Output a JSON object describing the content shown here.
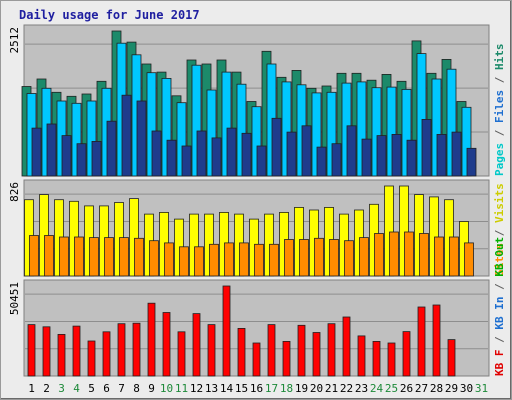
{
  "chart_data": {
    "type": "bar",
    "title": "Daily usage for June 2017",
    "categories": [
      "1",
      "2",
      "3",
      "4",
      "5",
      "6",
      "7",
      "8",
      "9",
      "10",
      "11",
      "12",
      "13",
      "14",
      "15",
      "16",
      "17",
      "18",
      "19",
      "20",
      "21",
      "22",
      "23",
      "24",
      "25",
      "26",
      "27",
      "28",
      "29",
      "30",
      "31"
    ],
    "weekend_days": [
      "3",
      "4",
      "10",
      "11",
      "17",
      "18",
      "24",
      "25",
      "31"
    ],
    "panels": [
      {
        "ymax_label": "2512",
        "ymax": 2512,
        "legend": [
          {
            "text": "Pages",
            "color": "#00c8c8"
          },
          {
            "text": "/",
            "color": "#606060"
          },
          {
            "text": "Files",
            "color": "#1e6fd0"
          },
          {
            "text": "/",
            "color": "#606060"
          },
          {
            "text": "Hits",
            "color": "#1c8a6a"
          }
        ],
        "series": [
          {
            "name": "Hits",
            "color": "#1c8a6a",
            "values": [
              1550,
              1680,
              1450,
              1380,
              1420,
              1640,
              2512,
              2320,
              1940,
              1800,
              1390,
              2010,
              1940,
              2010,
              1800,
              1290,
              2160,
              1710,
              1830,
              1520,
              1560,
              1780,
              1780,
              1660,
              1760,
              1640,
              2340,
              1780,
              2020,
              1290,
              0
            ]
          },
          {
            "name": "Files",
            "color": "#00c8ff",
            "values": [
              1430,
              1520,
              1300,
              1260,
              1300,
              1520,
              2300,
              2100,
              1790,
              1690,
              1270,
              1920,
              1490,
              1800,
              1590,
              1200,
              1940,
              1630,
              1580,
              1440,
              1450,
              1610,
              1630,
              1530,
              1540,
              1500,
              2120,
              1680,
              1850,
              1190,
              0
            ]
          },
          {
            "name": "Pages",
            "color": "#1f3c8c",
            "values": [
              830,
              900,
              700,
              560,
              600,
              950,
              1400,
              1300,
              780,
              620,
              520,
              780,
              660,
              830,
              740,
              520,
              1000,
              760,
              870,
              500,
              560,
              870,
              640,
              700,
              720,
              620,
              980,
              720,
              760,
              480,
              0
            ]
          }
        ]
      },
      {
        "ymax_label": "826",
        "ymax": 826,
        "legend": [
          {
            "text": "Sites",
            "color": "#ff8c00"
          },
          {
            "text": "/",
            "color": "#606060"
          },
          {
            "text": "Visits",
            "color": "#cccc00"
          }
        ],
        "series": [
          {
            "name": "Visits",
            "color": "#ffff00",
            "values": [
              700,
              747,
              700,
              686,
              643,
              643,
              675,
              710,
              568,
              584,
              522,
              568,
              568,
              584,
              568,
              522,
              568,
              584,
              630,
              606,
              630,
              568,
              606,
              658,
              826,
              826,
              747,
              726,
              700,
              500,
              0
            ]
          },
          {
            "name": "Sites",
            "color": "#ff8c00",
            "values": [
              372,
              372,
              358,
              358,
              352,
              352,
              352,
              346,
              324,
              304,
              268,
              268,
              291,
              304,
              304,
              291,
              291,
              335,
              335,
              346,
              335,
              324,
              352,
              390,
              404,
              404,
              390,
              358,
              358,
              304,
              0
            ]
          }
        ]
      },
      {
        "ymax_label": "50451",
        "ymax": 50451,
        "legend": [
          {
            "text": "KB F",
            "color": "#e00000"
          },
          {
            "text": "/",
            "color": "#606060"
          },
          {
            "text": "KB In",
            "color": "#1e6fd0"
          },
          {
            "text": "/",
            "color": "#606060"
          },
          {
            "text": "KB Out",
            "color": "#00b000"
          }
        ],
        "series": [
          {
            "name": "KB F",
            "color": "#ff0000",
            "values": [
              28800,
              27600,
              23300,
              28000,
              19600,
              24800,
              29300,
              29600,
              40800,
              35600,
              24800,
              35000,
              28800,
              50451,
              26700,
              18500,
              28800,
              19400,
              28400,
              24400,
              29300,
              33100,
              22500,
              19400,
              18500,
              24900,
              38700,
              39800,
              20400,
              0,
              0
            ]
          }
        ]
      }
    ]
  }
}
